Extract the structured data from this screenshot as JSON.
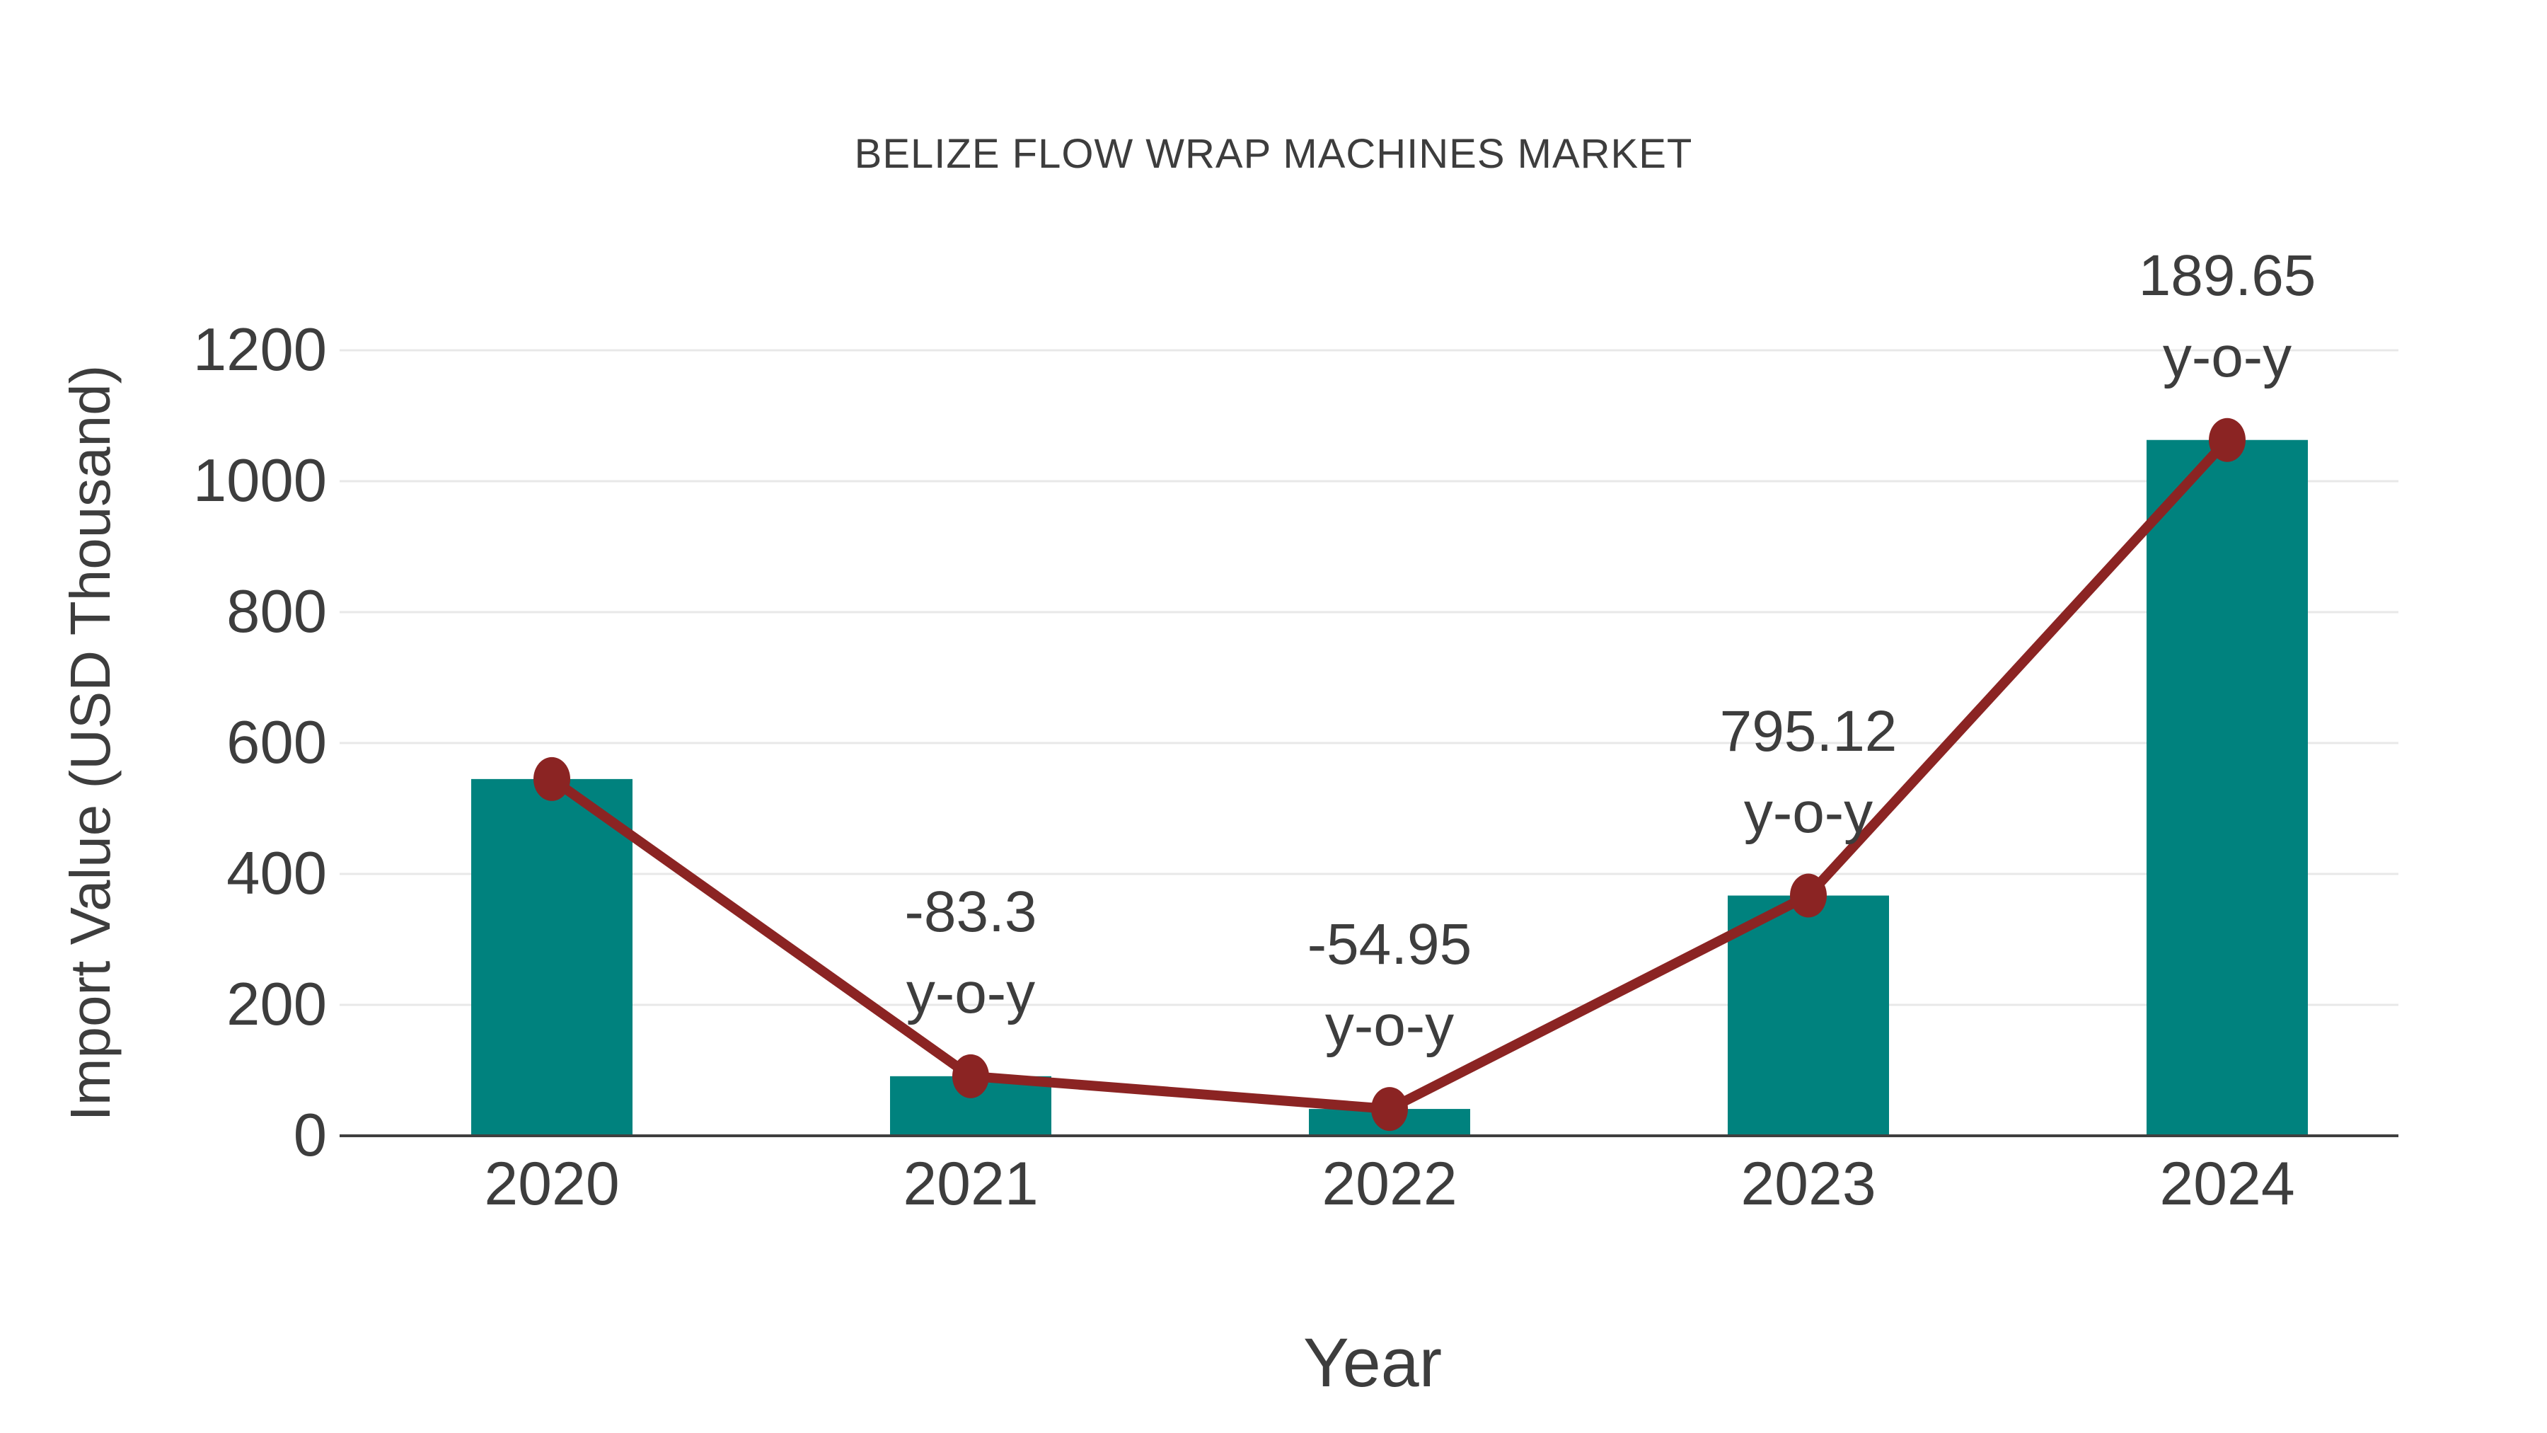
{
  "chart_data": {
    "type": "bar",
    "title": "BELIZE FLOW WRAP MACHINES MARKET",
    "xlabel": "Year",
    "ylabel": "Import Value (USD Thousand)",
    "categories": [
      "2020",
      "2021",
      "2022",
      "2023",
      "2024"
    ],
    "series": [
      {
        "name": "Import Value bars",
        "type": "bar",
        "values": [
          545,
          91,
          41,
          367,
          1063
        ]
      },
      {
        "name": "Import Value trend line",
        "type": "line",
        "values": [
          545,
          91,
          41,
          367,
          1063
        ]
      }
    ],
    "annotations": [
      {
        "category_index": 1,
        "value_line": "-83.3",
        "suffix_line": "y-o-y"
      },
      {
        "category_index": 2,
        "value_line": "-54.95",
        "suffix_line": "y-o-y"
      },
      {
        "category_index": 3,
        "value_line": "795.12",
        "suffix_line": "y-o-y"
      },
      {
        "category_index": 4,
        "value_line": "189.65",
        "suffix_line": "y-o-y"
      }
    ],
    "yticks": [
      0,
      200,
      400,
      600,
      800,
      1000,
      1200
    ],
    "ylim": [
      0,
      1250
    ],
    "grid": true,
    "legend_position": "none",
    "colors": {
      "bar": "#00827e",
      "line": "#8b2423",
      "marker": "#8b2423",
      "text": "#3d3d3d",
      "gridline": "#e8e8e8",
      "axisline": "#3f3f3f",
      "background": "#ffffff"
    }
  }
}
